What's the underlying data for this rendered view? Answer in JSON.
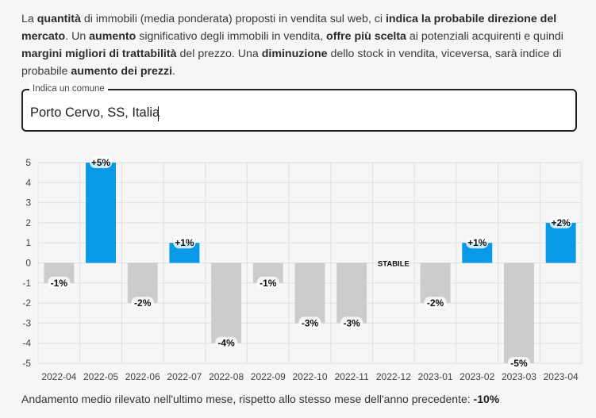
{
  "intro": {
    "p1": "La ",
    "b1": "quantità",
    "p2": " di immobili (media ponderata) proposti in vendita sul web, ci ",
    "b2": "indica la probabile direzione del mercato",
    "p3": ". Un ",
    "b3": "aumento",
    "p4": " significativo degli immobili in vendita, ",
    "b4": "offre più scelta",
    "p5": " ai potenziali acquirenti e quindi ",
    "b5": "margini migliori di trattabilità",
    "p6": " del prezzo. Una ",
    "b6": "diminuzione",
    "p7": " dello stock in vendita, viceversa, sarà indice di probabile ",
    "b7": "aumento dei prezzi",
    "p8": "."
  },
  "search": {
    "label": "Indica un comune",
    "value": "Porto Cervo, SS, Italia"
  },
  "footer": {
    "text": "Andamento medio rilevato nell'ultimo mese, rispetto allo stesso mese dell'anno precedente: ",
    "value": "-10%"
  },
  "colors": {
    "positive": "#0a99e6",
    "negative": "#cccccc",
    "grid": "#e0e0e0"
  },
  "chart_data": {
    "type": "bar",
    "categories": [
      "2022-04",
      "2022-05",
      "2022-06",
      "2022-07",
      "2022-08",
      "2022-09",
      "2022-10",
      "2022-11",
      "2022-12",
      "2023-01",
      "2023-02",
      "2023-03",
      "2023-04"
    ],
    "values": [
      -1,
      5,
      -2,
      1,
      -4,
      -1,
      -3,
      -3,
      0,
      -2,
      1,
      -5,
      2
    ],
    "data_labels": [
      "-1%",
      "+5%",
      "-2%",
      "+1%",
      "-4%",
      "-1%",
      "-3%",
      "-3%",
      "STABILE",
      "-2%",
      "+1%",
      "-5%",
      "+2%"
    ],
    "yticks": [
      5,
      4,
      3,
      2,
      1,
      0,
      -1,
      -2,
      -3,
      -4,
      -5
    ],
    "ylim": [
      -5,
      5
    ],
    "grid": true,
    "legend": "none"
  }
}
